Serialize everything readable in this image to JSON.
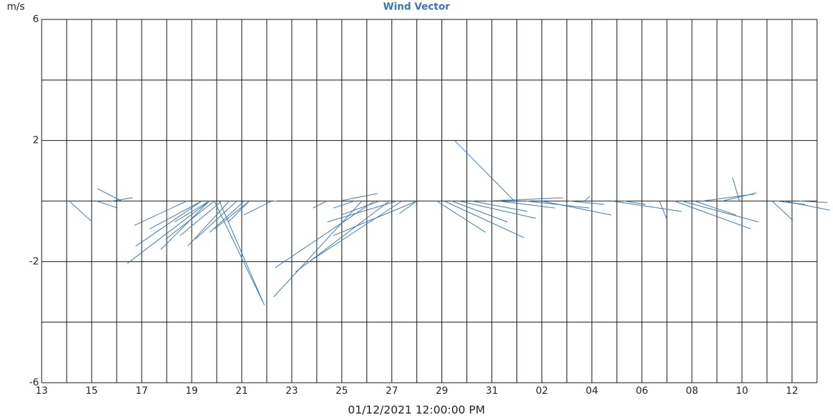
{
  "chart_data": {
    "type": "vector",
    "title": "Wind Vector",
    "y_label": "m/s",
    "x_label": "01/12/2021 12:00:00 PM",
    "color": "#3a78b0",
    "xlim": [
      0,
      31
    ],
    "xticks": [
      {
        "value": 0,
        "label": "13"
      },
      {
        "value": 2,
        "label": "15"
      },
      {
        "value": 4,
        "label": "17"
      },
      {
        "value": 6,
        "label": "19"
      },
      {
        "value": 8,
        "label": "21"
      },
      {
        "value": 10,
        "label": "23"
      },
      {
        "value": 12,
        "label": "25"
      },
      {
        "value": 14,
        "label": "27"
      },
      {
        "value": 16,
        "label": "29"
      },
      {
        "value": 18,
        "label": "31"
      },
      {
        "value": 20,
        "label": "02"
      },
      {
        "value": 22,
        "label": "04"
      },
      {
        "value": 24,
        "label": "06"
      },
      {
        "value": 26,
        "label": "08"
      },
      {
        "value": 28,
        "label": "10"
      },
      {
        "value": 30,
        "label": "12"
      }
    ],
    "xminorticks": [
      1,
      3,
      5,
      7,
      9,
      11,
      13,
      15,
      17,
      19,
      21,
      23,
      25,
      27,
      29,
      31
    ],
    "ylim": [
      -6,
      6
    ],
    "yticks": [
      -6,
      -2,
      2,
      6
    ],
    "yminorticks": [
      -4,
      0,
      4
    ],
    "grid": true,
    "x": [
      1.1,
      2.2,
      3.2,
      2.8,
      6.7,
      6.4,
      5.8,
      6.7,
      6.9,
      7.2,
      6.4,
      7.5,
      7.8,
      6.7,
      8.1,
      8.3,
      6.9,
      7.1,
      8.3,
      9.2,
      9.4,
      12.8,
      13.3,
      13.9,
      14.4,
      15.0,
      14.2,
      13.5,
      12.5,
      11.9,
      15.0,
      11.4,
      18.9,
      16.1,
      15.8,
      16.4,
      16.7,
      17.2,
      17.8,
      18.3,
      19.4,
      20.0,
      21.1,
      21.7,
      22.8,
      23.3,
      24.7,
      25.3,
      25.6,
      26.1,
      26.4,
      27.9,
      27.2,
      29.2,
      29.7,
      30.3,
      29.4
    ],
    "u": [
      0.76,
      0.69,
      -0.8,
      0.69,
      -2.7,
      -2.18,
      -1.72,
      -1.6,
      -1.6,
      -1.37,
      -1.72,
      -1.37,
      -1.37,
      -1.14,
      -1.14,
      -1.14,
      1.6,
      1.49,
      -0.69,
      -0.92,
      -0.11,
      -2.9,
      -3.27,
      -3.09,
      -3.09,
      -2.75,
      -2.29,
      -1.26,
      -0.69,
      1.26,
      -0.57,
      -0.46,
      -1.99,
      2.63,
      1.6,
      1.83,
      2.52,
      1.83,
      2.52,
      1.83,
      2.06,
      2.29,
      1.14,
      0.18,
      2.29,
      0.69,
      0.23,
      2.52,
      2.52,
      1.37,
      1.72,
      -0.23,
      1.14,
      0.69,
      1.49,
      0.92,
      0.92
    ],
    "v": [
      -0.69,
      -0.23,
      0.41,
      0.11,
      -2.06,
      -1.49,
      -0.8,
      -1.6,
      -1.26,
      -1.14,
      -0.92,
      -1.49,
      -1.26,
      -0.69,
      -1.03,
      -0.92,
      -3.32,
      -3.44,
      -0.69,
      -0.46,
      0,
      -3.16,
      -2.2,
      -2.34,
      -2.02,
      -1.14,
      -0.69,
      -0.46,
      -0.23,
      0.25,
      -0.41,
      -0.23,
      2.02,
      -1.21,
      -1.03,
      -0.69,
      -0.57,
      -0.34,
      0.11,
      -0.23,
      -0.23,
      -0.46,
      -0.11,
      0.16,
      -0.34,
      -0.11,
      -0.57,
      -0.92,
      -0.69,
      -0.46,
      0.23,
      0.78,
      0.27,
      -0.64,
      -0.3,
      -0.05,
      -0.11
    ]
  }
}
